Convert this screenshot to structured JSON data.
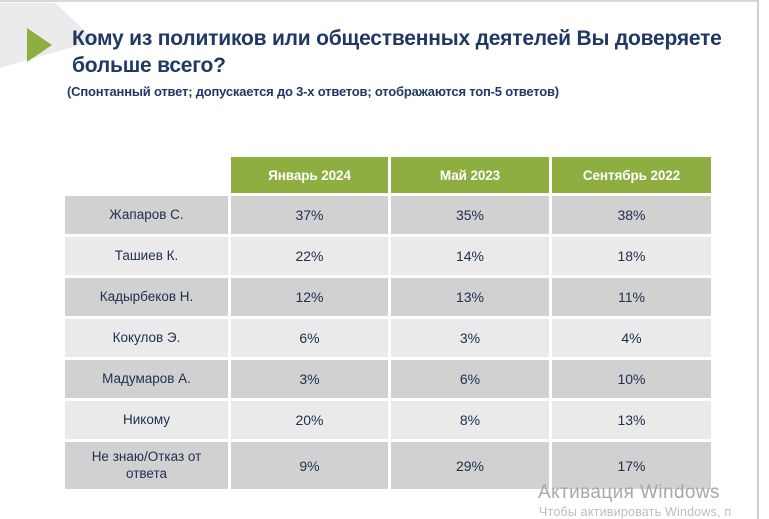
{
  "slide": {
    "title": "Кому из политиков или общественных деятелей Вы доверяете больше всего?",
    "subtitle": "(Спонтанный ответ; допускается до 3-х ответов; отображаются топ-5 ответов)"
  },
  "chart_data": {
    "type": "table",
    "title": "Кому из политиков или общественных деятелей Вы доверяете больше всего?",
    "columns": [
      "Январь 2024",
      "Май 2023",
      "Сентябрь 2022"
    ],
    "rows": [
      {
        "label": "Жапаров С.",
        "values": [
          "37%",
          "35%",
          "38%"
        ]
      },
      {
        "label": "Ташиев К.",
        "values": [
          "22%",
          "14%",
          "18%"
        ]
      },
      {
        "label": "Кадырбеков Н.",
        "values": [
          "12%",
          "13%",
          "11%"
        ]
      },
      {
        "label": "Кокулов Э.",
        "values": [
          "6%",
          "3%",
          "4%"
        ]
      },
      {
        "label": "Мадумаров А.",
        "values": [
          "3%",
          "6%",
          "10%"
        ]
      },
      {
        "label": "Никому",
        "values": [
          "20%",
          "8%",
          "13%"
        ]
      },
      {
        "label": "Не знаю/Отказ от ответа",
        "values": [
          "9%",
          "29%",
          "17%"
        ]
      }
    ]
  },
  "watermark": {
    "line1": "Активация Windows",
    "line2": "Чтобы активировать Windows, п"
  },
  "colors": {
    "accent_green": "#8fae42",
    "title_navy": "#1f3864",
    "cell_text_navy": "#20304f",
    "row_dark": "#d1d1d1",
    "row_light": "#eaeaea",
    "watermark_line1": "#a8a8a8",
    "watermark_line2": "#bdbdbd"
  }
}
